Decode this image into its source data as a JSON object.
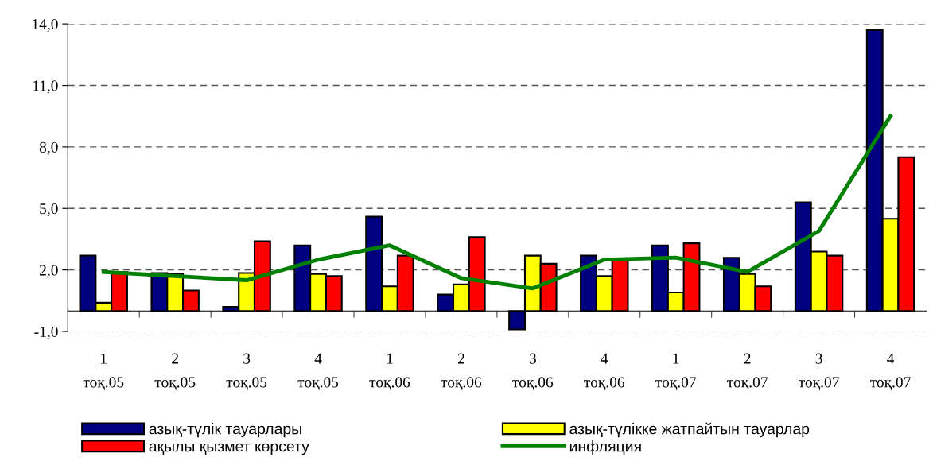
{
  "chart_data": {
    "type": "bar",
    "categories": [
      "1\nтоқ.05",
      "2\nтоқ.05",
      "3\nтоқ.05",
      "4\nтоқ.05",
      "1\nтоқ.06",
      "2\nтоқ.06",
      "3\nтоқ.06",
      "4\nтоқ.06",
      "1\nтоқ.07",
      "2\nтоқ.07",
      "3\nтоқ.07",
      "4\nтоқ.07"
    ],
    "series": [
      {
        "name": "азық-түлік тауарлары",
        "color": "#000080",
        "values": [
          2.7,
          1.85,
          0.2,
          3.2,
          4.6,
          0.8,
          -0.9,
          2.7,
          3.2,
          2.6,
          5.3,
          13.7
        ]
      },
      {
        "name": "азық-түлікке жатпайтын тауарлар",
        "color": "#ffff00",
        "values": [
          0.4,
          1.8,
          1.85,
          1.8,
          1.2,
          1.3,
          2.7,
          1.7,
          0.9,
          1.8,
          2.9,
          4.5
        ]
      },
      {
        "name": "ақылы қызмет көрсету",
        "color": "#ff0000",
        "values": [
          1.9,
          1.0,
          3.4,
          1.7,
          2.7,
          3.6,
          2.3,
          2.5,
          3.3,
          1.2,
          2.7,
          7.5
        ]
      },
      {
        "name": "инфляция",
        "color": "#008000",
        "type": "line",
        "values": [
          1.9,
          1.7,
          1.5,
          2.5,
          3.2,
          1.6,
          1.1,
          2.5,
          2.6,
          1.9,
          3.9,
          9.5
        ]
      }
    ],
    "ylim": [
      -1,
      14
    ],
    "yticks": [
      {
        "value": -1,
        "label": "-1,0"
      },
      {
        "value": 2,
        "label": "2,0"
      },
      {
        "value": 5,
        "label": "5,0"
      },
      {
        "value": 8,
        "label": "8,0"
      },
      {
        "value": 11,
        "label": "11,0"
      },
      {
        "value": 14,
        "label": "14,0"
      }
    ],
    "grid": "y",
    "legend": "bottom"
  }
}
